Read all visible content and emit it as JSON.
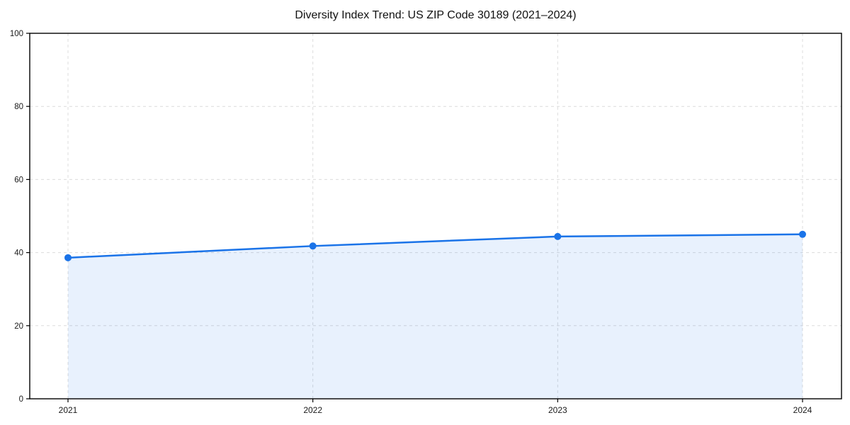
{
  "chart_data": {
    "type": "line",
    "title": "Diversity Index Trend: US ZIP Code 30189 (2021–2024)",
    "x": [
      "2021",
      "2022",
      "2023",
      "2024"
    ],
    "series": [
      {
        "name": "Diversity Index",
        "values": [
          38.6,
          41.8,
          44.4,
          45.0
        ]
      }
    ],
    "xlabel": "",
    "ylabel": "",
    "ylim": [
      0,
      100
    ],
    "yticks": [
      0,
      20,
      40,
      60,
      80,
      100
    ],
    "grid": true,
    "grid_style": "dashed",
    "legend": "none",
    "marker": "circle",
    "area_fill": true,
    "colors": {
      "line": "#1a73e8",
      "marker": "#1a73e8",
      "area": "#1a73e8",
      "area_opacity": "0.10",
      "grid": "#dcdcdc",
      "axis": "#000000",
      "tick_label": "#1a1a1a",
      "background": "#ffffff"
    }
  }
}
